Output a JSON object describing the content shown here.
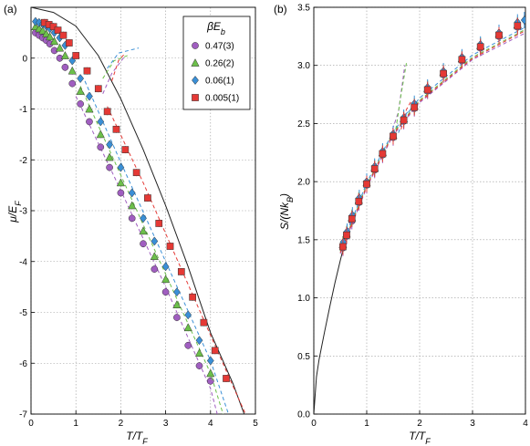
{
  "colors": {
    "purple": "#a05ec0",
    "green": "#6cc04a",
    "blue": "#3a8fd6",
    "red": "#e53935",
    "exact": "#222222",
    "grid": "#9a9a9a"
  },
  "chart_data": [
    {
      "type": "scatter",
      "panel_label": "(a)",
      "xlim": [
        0,
        5
      ],
      "ylim": [
        -7,
        1
      ],
      "xticks": [
        0,
        1,
        2,
        3,
        4,
        5
      ],
      "yticks": [
        -7,
        -6,
        -5,
        -4,
        -3,
        -2,
        -1,
        0
      ],
      "grid": true,
      "legend": {
        "title": "βE_b",
        "position": "top-right"
      },
      "series": [
        {
          "name": "0.47(3)",
          "color": "purple",
          "marker": "circle",
          "points": [
            [
              0.1,
              0.5
            ],
            [
              0.18,
              0.45
            ],
            [
              0.26,
              0.4
            ],
            [
              0.34,
              0.35
            ],
            [
              0.42,
              0.28
            ],
            [
              0.52,
              0.15
            ],
            [
              0.64,
              0.0
            ],
            [
              0.76,
              -0.18
            ],
            [
              0.92,
              -0.5
            ],
            [
              1.1,
              -0.9
            ],
            [
              1.3,
              -1.25
            ],
            [
              1.55,
              -1.75
            ],
            [
              1.75,
              -2.15
            ],
            [
              2.0,
              -2.65
            ],
            [
              2.25,
              -3.15
            ],
            [
              2.5,
              -3.65
            ],
            [
              2.75,
              -4.15
            ],
            [
              3.0,
              -4.6
            ],
            [
              3.25,
              -5.1
            ],
            [
              3.5,
              -5.65
            ],
            [
              3.75,
              -6.05
            ],
            [
              4.0,
              -6.35
            ]
          ],
          "fit": [
            [
              1.0,
              -0.75
            ],
            [
              2.0,
              -2.6
            ],
            [
              3.0,
              -4.5
            ],
            [
              4.0,
              -6.5
            ],
            [
              4.15,
              -7.0
            ]
          ],
          "anomaly": [
            [
              1.6,
              -0.7
            ],
            [
              1.8,
              -0.3
            ],
            [
              2.1,
              0.05
            ]
          ]
        },
        {
          "name": "0.26(2)",
          "color": "green",
          "marker": "triangle",
          "points": [
            [
              0.1,
              0.62
            ],
            [
              0.18,
              0.58
            ],
            [
              0.26,
              0.54
            ],
            [
              0.34,
              0.48
            ],
            [
              0.42,
              0.42
            ],
            [
              0.52,
              0.33
            ],
            [
              0.64,
              0.2
            ],
            [
              0.76,
              0.05
            ],
            [
              0.92,
              -0.25
            ],
            [
              1.1,
              -0.65
            ],
            [
              1.3,
              -1.0
            ],
            [
              1.55,
              -1.5
            ],
            [
              1.75,
              -1.95
            ],
            [
              2.0,
              -2.45
            ],
            [
              2.25,
              -2.9
            ],
            [
              2.5,
              -3.4
            ],
            [
              2.75,
              -3.9
            ],
            [
              3.0,
              -4.35
            ],
            [
              3.25,
              -4.85
            ],
            [
              3.5,
              -5.3
            ],
            [
              3.75,
              -5.8
            ],
            [
              4.0,
              -6.2
            ]
          ],
          "fit": [
            [
              1.1,
              -0.55
            ],
            [
              2.0,
              -2.3
            ],
            [
              3.0,
              -4.25
            ],
            [
              4.0,
              -6.2
            ],
            [
              4.28,
              -7.0
            ]
          ],
          "anomaly": [
            [
              1.6,
              -0.4
            ],
            [
              1.85,
              -0.05
            ],
            [
              2.15,
              0.05
            ]
          ]
        },
        {
          "name": "0.06(1)",
          "color": "blue",
          "marker": "diamond",
          "points": [
            [
              0.1,
              0.72
            ],
            [
              0.18,
              0.7
            ],
            [
              0.26,
              0.67
            ],
            [
              0.34,
              0.63
            ],
            [
              0.42,
              0.58
            ],
            [
              0.52,
              0.5
            ],
            [
              0.64,
              0.4
            ],
            [
              0.76,
              0.25
            ],
            [
              0.92,
              -0.05
            ],
            [
              1.1,
              -0.4
            ],
            [
              1.3,
              -0.75
            ],
            [
              1.55,
              -1.25
            ],
            [
              1.75,
              -1.7
            ],
            [
              2.0,
              -2.15
            ],
            [
              2.25,
              -2.65
            ],
            [
              2.5,
              -3.15
            ],
            [
              2.75,
              -3.6
            ],
            [
              3.0,
              -4.1
            ],
            [
              3.25,
              -4.6
            ],
            [
              3.5,
              -5.05
            ],
            [
              3.75,
              -5.55
            ],
            [
              4.0,
              -5.95
            ]
          ],
          "fit": [
            [
              1.2,
              -0.45
            ],
            [
              2.0,
              -2.05
            ],
            [
              3.0,
              -4.0
            ],
            [
              4.0,
              -5.95
            ],
            [
              4.4,
              -7.0
            ]
          ],
          "anomaly": [
            [
              1.7,
              -0.2
            ],
            [
              1.95,
              0.1
            ],
            [
              2.4,
              0.2
            ]
          ]
        },
        {
          "name": "0.005(1)",
          "color": "red",
          "marker": "square",
          "points": [
            [
              0.3,
              0.7
            ],
            [
              0.4,
              0.66
            ],
            [
              0.5,
              0.62
            ],
            [
              0.6,
              0.55
            ],
            [
              0.72,
              0.45
            ],
            [
              0.85,
              0.3
            ],
            [
              1.0,
              0.05
            ],
            [
              1.25,
              -0.25
            ],
            [
              1.5,
              -0.6
            ],
            [
              1.7,
              -1.05
            ],
            [
              1.9,
              -1.4
            ],
            [
              2.1,
              -1.8
            ],
            [
              2.35,
              -2.25
            ],
            [
              2.6,
              -2.75
            ],
            [
              2.85,
              -3.25
            ],
            [
              3.1,
              -3.7
            ],
            [
              3.35,
              -4.2
            ],
            [
              3.6,
              -4.7
            ],
            [
              3.85,
              -5.2
            ],
            [
              4.1,
              -5.75
            ],
            [
              4.35,
              -6.3
            ]
          ],
          "fit": [
            [
              1.7,
              -0.95
            ],
            [
              2.5,
              -2.45
            ],
            [
              3.5,
              -4.45
            ],
            [
              4.5,
              -6.45
            ],
            [
              4.78,
              -7.0
            ]
          ],
          "anomaly": [
            [
              1.8,
              -0.45
            ],
            [
              1.95,
              -0.05
            ],
            [
              2.1,
              0.1
            ]
          ]
        }
      ],
      "exact_curve": [
        [
          0,
          1.0
        ],
        [
          0.5,
          0.9
        ],
        [
          1.0,
          0.63
        ],
        [
          1.5,
          0.05
        ],
        [
          2.0,
          -0.8
        ],
        [
          2.5,
          -1.8
        ],
        [
          3.0,
          -2.9
        ],
        [
          3.5,
          -4.1
        ],
        [
          4.0,
          -5.4
        ],
        [
          4.5,
          -6.4
        ],
        [
          4.75,
          -7.0
        ]
      ]
    },
    {
      "type": "scatter",
      "panel_label": "(b)",
      "xlim": [
        0,
        4
      ],
      "ylim": [
        0,
        3.5
      ],
      "xticks": [
        0,
        1,
        2,
        3,
        4
      ],
      "yticks": [
        0,
        0.5,
        1,
        1.5,
        2,
        2.5,
        3,
        3.5
      ],
      "grid": true,
      "series": [
        {
          "name": "0.47(3)",
          "color": "purple",
          "marker": "circle",
          "points": [
            [
              0.55,
              1.43
            ],
            [
              0.62,
              1.53
            ],
            [
              0.72,
              1.66
            ],
            [
              0.85,
              1.82
            ],
            [
              1.0,
              1.97
            ],
            [
              1.15,
              2.1
            ],
            [
              1.3,
              2.23
            ],
            [
              1.5,
              2.38
            ],
            [
              1.7,
              2.52
            ],
            [
              1.9,
              2.63
            ],
            [
              2.15,
              2.78
            ],
            [
              2.45,
              2.92
            ],
            [
              2.8,
              3.04
            ],
            [
              3.15,
              3.15
            ],
            [
              3.5,
              3.25
            ],
            [
              3.85,
              3.33
            ]
          ],
          "fit": [
            [
              0.5,
              1.38
            ],
            [
              1.0,
              1.95
            ],
            [
              1.5,
              2.4
            ],
            [
              2.0,
              2.68
            ],
            [
              3.0,
              3.05
            ],
            [
              4.0,
              3.28
            ]
          ],
          "anomaly": [
            [
              1.45,
              2.4
            ],
            [
              1.6,
              2.6
            ],
            [
              1.72,
              3.0
            ]
          ]
        },
        {
          "name": "0.26(2)",
          "color": "green",
          "marker": "triangle",
          "points": [
            [
              0.55,
              1.46
            ],
            [
              0.62,
              1.55
            ],
            [
              0.72,
              1.69
            ],
            [
              0.85,
              1.84
            ],
            [
              1.0,
              1.99
            ],
            [
              1.15,
              2.12
            ],
            [
              1.3,
              2.25
            ],
            [
              1.5,
              2.4
            ],
            [
              1.7,
              2.54
            ],
            [
              1.9,
              2.65
            ],
            [
              2.15,
              2.8
            ],
            [
              2.45,
              2.94
            ],
            [
              2.8,
              3.06
            ],
            [
              3.15,
              3.17
            ],
            [
              3.5,
              3.27
            ],
            [
              3.85,
              3.35
            ]
          ],
          "fit": [
            [
              0.5,
              1.4
            ],
            [
              1.0,
              1.97
            ],
            [
              1.5,
              2.42
            ],
            [
              2.0,
              2.7
            ],
            [
              3.0,
              3.07
            ],
            [
              4.0,
              3.31
            ]
          ],
          "anomaly": [
            [
              1.55,
              2.45
            ],
            [
              1.65,
              2.75
            ],
            [
              1.75,
              3.02
            ]
          ]
        },
        {
          "name": "0.06(1)",
          "color": "blue",
          "marker": "diamond",
          "points": [
            [
              0.56,
              1.48
            ],
            [
              0.63,
              1.57
            ],
            [
              0.73,
              1.71
            ],
            [
              0.86,
              1.86
            ],
            [
              1.0,
              2.0
            ],
            [
              1.15,
              2.13
            ],
            [
              1.3,
              2.26
            ],
            [
              1.5,
              2.41
            ],
            [
              1.7,
              2.55
            ],
            [
              1.9,
              2.67
            ],
            [
              2.15,
              2.81
            ],
            [
              2.45,
              2.95
            ],
            [
              2.8,
              3.07
            ],
            [
              3.15,
              3.18
            ],
            [
              3.5,
              3.28
            ],
            [
              3.85,
              3.37
            ],
            [
              3.98,
              3.39
            ]
          ],
          "fit": [
            [
              0.5,
              1.42
            ],
            [
              1.0,
              1.99
            ],
            [
              1.5,
              2.43
            ],
            [
              2.0,
              2.72
            ],
            [
              3.0,
              3.09
            ],
            [
              4.0,
              3.33
            ]
          ],
          "anomaly": [
            [
              1.6,
              2.42
            ],
            [
              1.7,
              2.55
            ],
            [
              1.8,
              2.62
            ]
          ]
        },
        {
          "name": "0.005(1)",
          "color": "red",
          "marker": "square",
          "points": [
            [
              0.55,
              1.44
            ],
            [
              0.62,
              1.54
            ],
            [
              0.72,
              1.68
            ],
            [
              0.85,
              1.83
            ],
            [
              1.0,
              1.98
            ],
            [
              1.15,
              2.11
            ],
            [
              1.3,
              2.24
            ],
            [
              1.5,
              2.39
            ],
            [
              1.7,
              2.53
            ],
            [
              1.9,
              2.64
            ],
            [
              2.15,
              2.79
            ],
            [
              2.45,
              2.93
            ],
            [
              2.8,
              3.05
            ],
            [
              3.15,
              3.16
            ],
            [
              3.5,
              3.26
            ],
            [
              3.85,
              3.34
            ]
          ],
          "fit": [
            [
              0.5,
              1.39
            ],
            [
              1.0,
              1.96
            ],
            [
              1.5,
              2.41
            ],
            [
              2.0,
              2.69
            ],
            [
              3.0,
              3.06
            ],
            [
              4.0,
              3.3
            ]
          ],
          "anomaly": [
            [
              1.65,
              2.45
            ],
            [
              1.75,
              2.62
            ],
            [
              1.85,
              2.7
            ]
          ]
        }
      ],
      "exact_curve": [
        [
          0,
          0
        ],
        [
          0.05,
          0.32
        ],
        [
          0.1,
          0.47
        ],
        [
          0.2,
          0.7
        ],
        [
          0.3,
          0.92
        ],
        [
          0.4,
          1.13
        ],
        [
          0.5,
          1.32
        ],
        [
          0.6,
          1.5
        ]
      ]
    }
  ]
}
